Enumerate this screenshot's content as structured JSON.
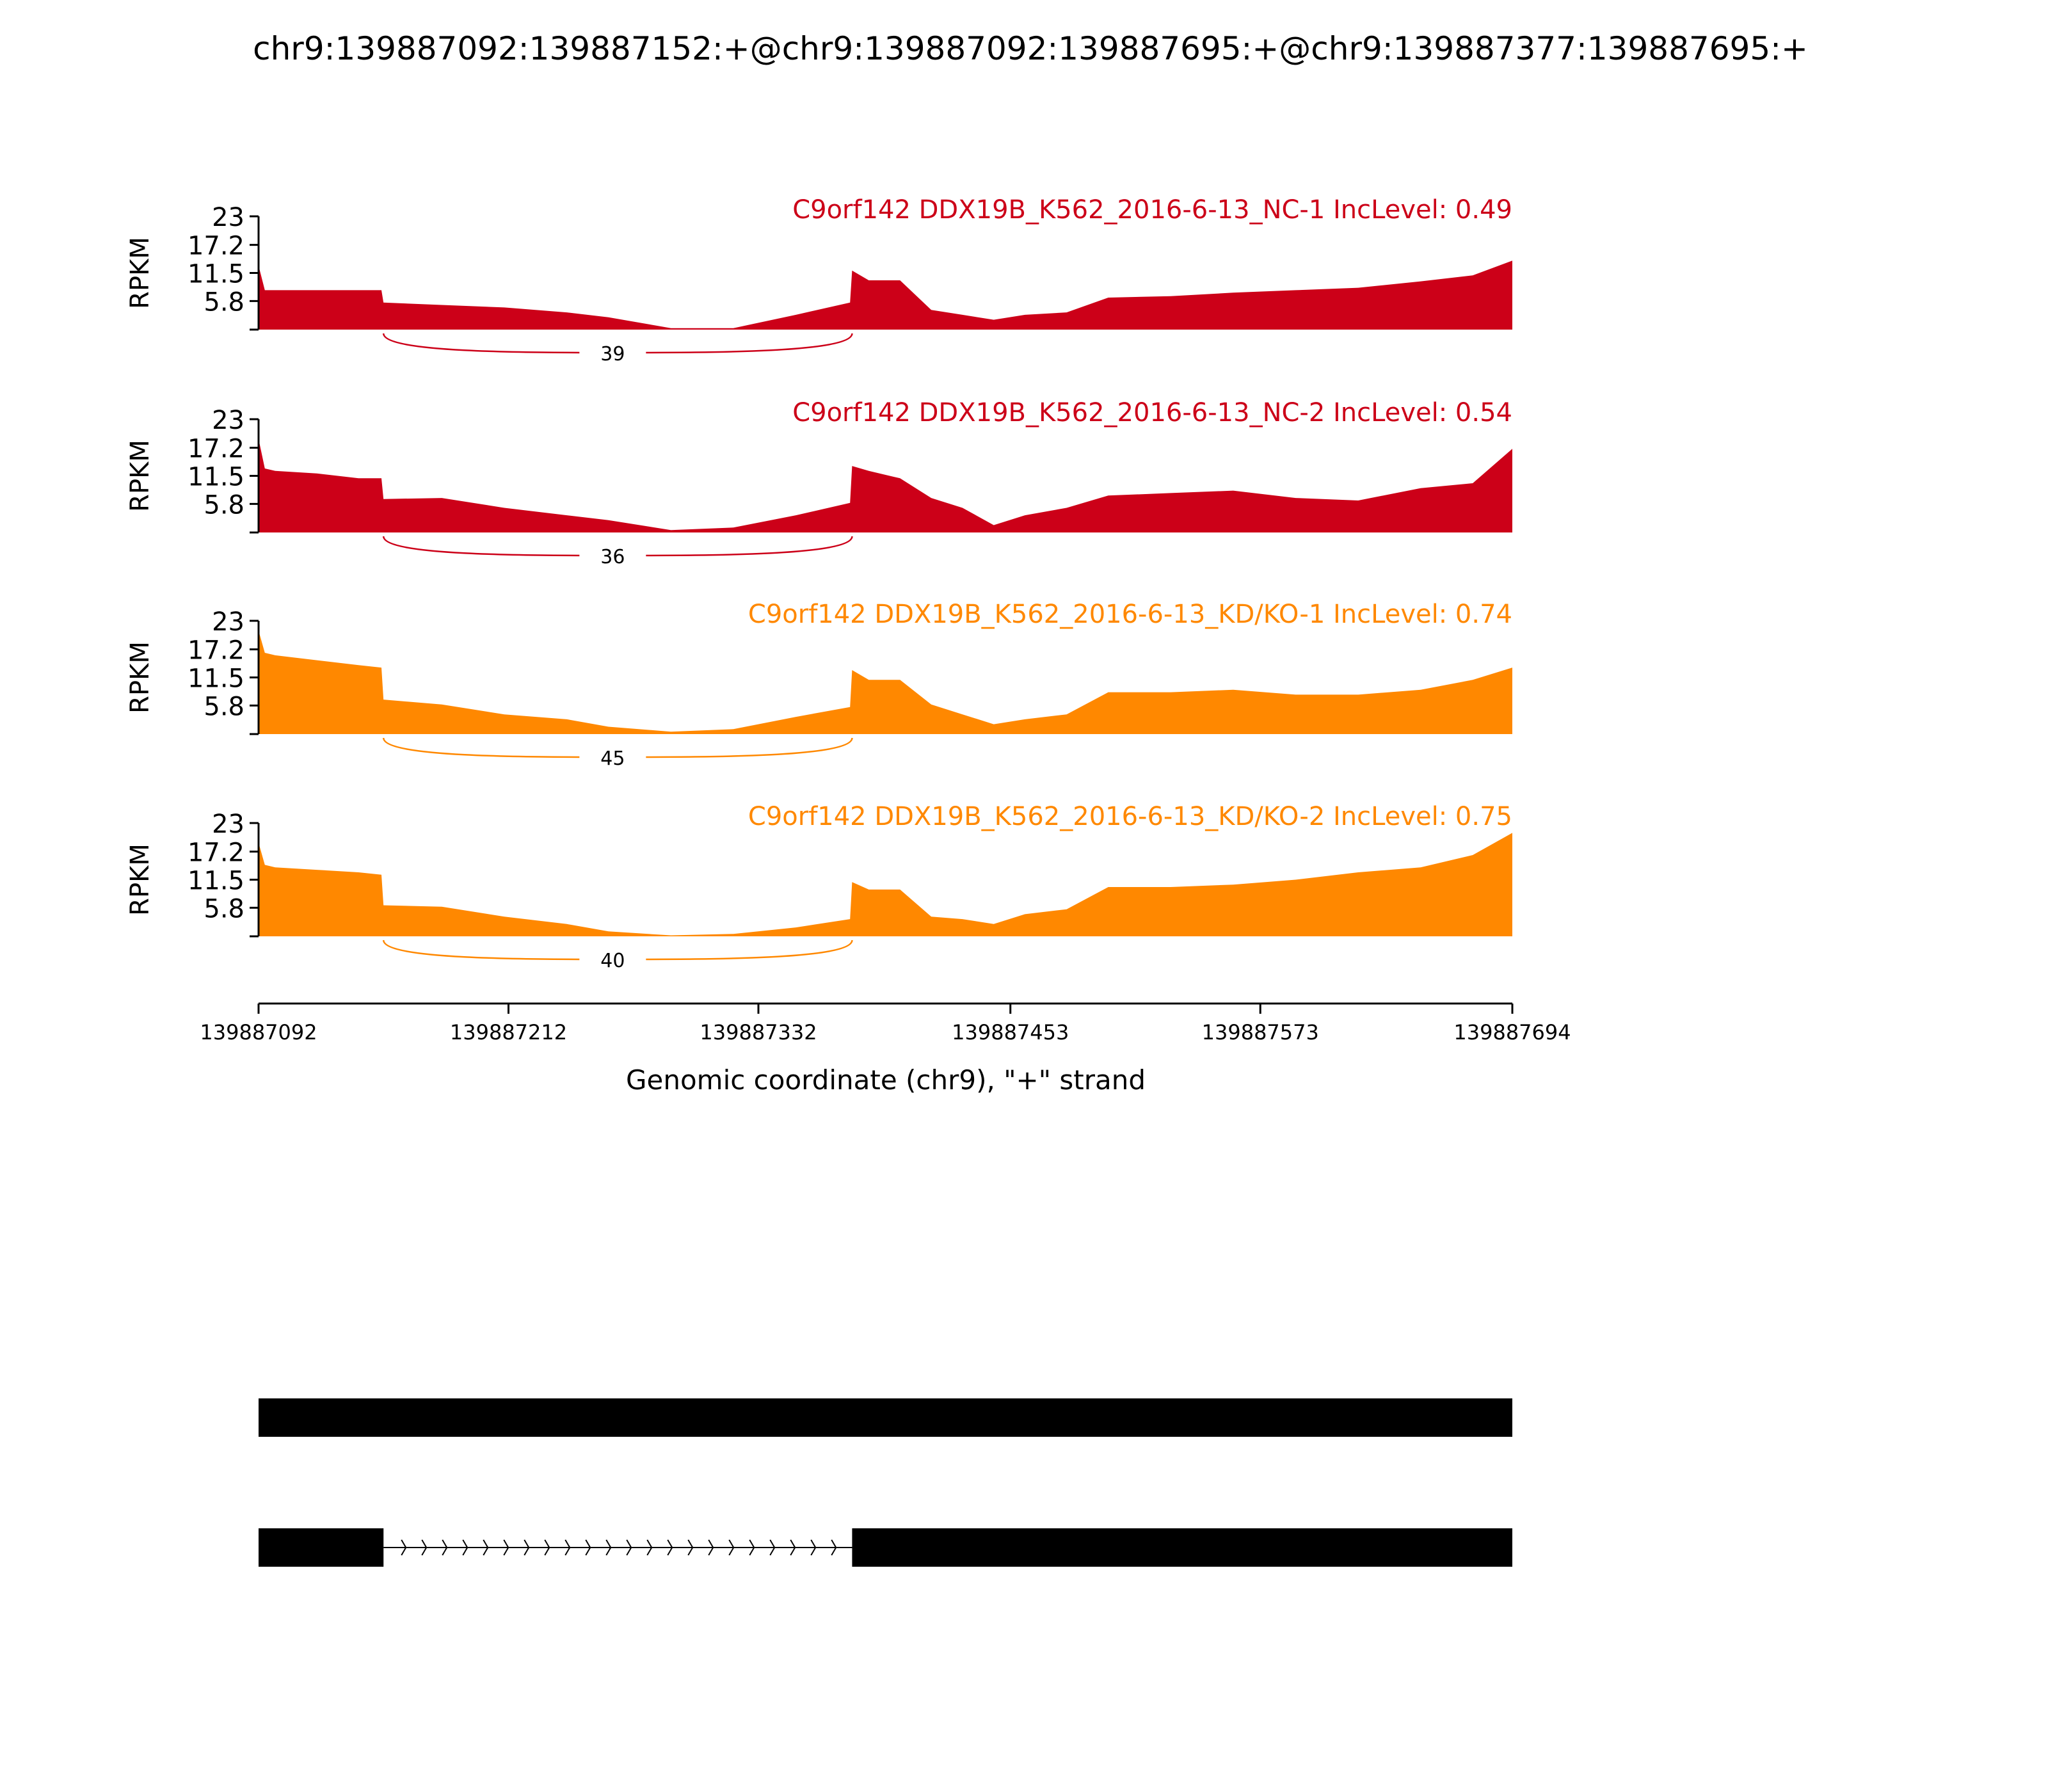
{
  "chart_data": {
    "type": "area",
    "title": "chr9:139887092:139887152:+@chr9:139887092:139887695:+@chr9:139887377:139887695:+",
    "xlabel": "Genomic coordinate (chr9), \"+\" strand",
    "ylabel": "RPKM",
    "xlim": [
      139887092,
      139887694
    ],
    "ylim": [
      0,
      23
    ],
    "x_ticks": [
      "139887092",
      "139887212",
      "139887332",
      "139887453",
      "139887573",
      "139887694"
    ],
    "y_ticks": [
      "23",
      "17.2",
      "11.5",
      "5.8"
    ],
    "x": [
      139887092,
      139887095,
      139887100,
      139887120,
      139887140,
      139887151,
      139887152,
      139887180,
      139887210,
      139887240,
      139887260,
      139887290,
      139887320,
      139887350,
      139887376,
      139887377,
      139887385,
      139887400,
      139887415,
      139887430,
      139887445,
      139887460,
      139887480,
      139887500,
      139887530,
      139887560,
      139887590,
      139887620,
      139887650,
      139887675,
      139887694
    ],
    "series": [
      {
        "name": "C9orf142 DDX19B_K562_2016-6-13_NC-1 IncLevel: 0.49",
        "color": "#cc0018",
        "junction_count": "39",
        "values": [
          13,
          8,
          8,
          8,
          8,
          8,
          5.5,
          5,
          4.5,
          3.5,
          2.5,
          0.3,
          0.3,
          3,
          5.5,
          12,
          10,
          10,
          4,
          3,
          2,
          3,
          3.5,
          6.5,
          6.8,
          7.5,
          8,
          8.5,
          9.8,
          11,
          14
        ]
      },
      {
        "name": "C9orf142 DDX19B_K562_2016-6-13_NC-2 IncLevel: 0.54",
        "color": "#cc0018",
        "junction_count": "36",
        "values": [
          19,
          13,
          12.5,
          12,
          11,
          11,
          6.8,
          7,
          5,
          3.5,
          2.5,
          0.5,
          1,
          3.5,
          6,
          13.5,
          12.5,
          11,
          7,
          5,
          1.5,
          3.5,
          5,
          7.5,
          8,
          8.5,
          7,
          6.5,
          9,
          10,
          17
        ]
      },
      {
        "name": "C9orf142 DDX19B_K562_2016-6-13_KD/KO-1 IncLevel: 0.74",
        "color": "#ff8800",
        "junction_count": "45",
        "values": [
          21,
          16.5,
          16,
          15,
          14,
          13.5,
          7,
          6,
          4,
          3,
          1.5,
          0.5,
          1,
          3.5,
          5.5,
          13,
          11,
          11,
          6,
          4,
          2,
          3,
          4,
          8.5,
          8.5,
          9,
          8,
          8,
          9,
          11,
          13.5
        ]
      },
      {
        "name": "C9orf142 DDX19B_K562_2016-6-13_KD/KO-2 IncLevel: 0.75",
        "color": "#ff8800",
        "junction_count": "40",
        "values": [
          19,
          14.5,
          14,
          13.5,
          13,
          12.5,
          6.3,
          6,
          4,
          2.5,
          1,
          0.2,
          0.5,
          1.8,
          3.5,
          11,
          9.5,
          9.5,
          4,
          3.5,
          2.5,
          4.5,
          5.5,
          10,
          10,
          10.5,
          11.5,
          13,
          14,
          16.5,
          21
        ]
      }
    ],
    "junction": {
      "start": 139887152,
      "end": 139887377
    },
    "isoforms": [
      {
        "exons": [
          [
            139887092,
            139887694
          ]
        ]
      },
      {
        "exons": [
          [
            139887092,
            139887152
          ],
          [
            139887377,
            139887694
          ]
        ]
      }
    ]
  }
}
